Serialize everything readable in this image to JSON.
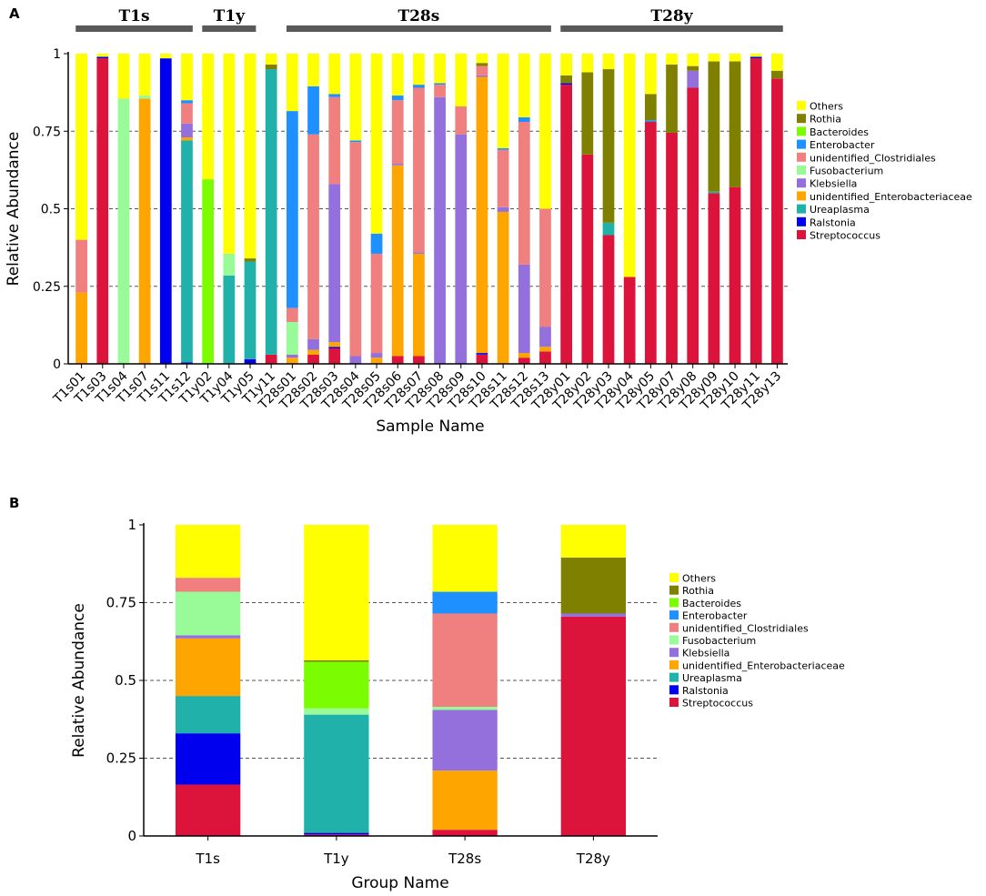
{
  "taxa": [
    "Streptococcus",
    "Ralstonia",
    "Ureaplasma",
    "unidentified_Enterobacteriaceae",
    "Klebsiella",
    "Fusobacterium",
    "unidentified_Clostridiales",
    "Enterobacter",
    "Bacteroides",
    "Rothia",
    "Others"
  ],
  "colors": {
    "Streptococcus": "#DC143C",
    "Ralstonia": "#0000EE",
    "Ureaplasma": "#20B2AA",
    "unidentified_Enterobacteriaceae": "#FFA500",
    "Klebsiella": "#9370DB",
    "Fusobacterium": "#98FB98",
    "unidentified_Clostridiales": "#F08080",
    "Enterobacter": "#1E90FF",
    "Bacteroides": "#7CFC00",
    "Rothia": "#808000",
    "Others": "#FFFF00"
  },
  "chart_data": [
    {
      "panel": "A",
      "type": "bar",
      "stacked": true,
      "xlabel": "Sample Name",
      "ylabel": "Relative Abundance",
      "ylim": [
        0,
        1
      ],
      "yticks": [
        "0",
        "0.25",
        "0.5",
        "0.75",
        "1"
      ],
      "group_headers": [
        {
          "label": "T1s",
          "samples": [
            "T1s01",
            "T1s12"
          ]
        },
        {
          "label": "T1y",
          "samples": [
            "T1y02",
            "T1y05"
          ]
        },
        {
          "label": "T28s",
          "samples": [
            "T28s01",
            "T28s13"
          ]
        },
        {
          "label": "T28y",
          "samples": [
            "T28y01",
            "T28y13"
          ]
        }
      ],
      "legend": [
        "Others",
        "Rothia",
        "Bacteroides",
        "Enterobacter",
        "unidentified_Clostridiales",
        "Fusobacterium",
        "Klebsiella",
        "unidentified_Enterobacteriaceae",
        "Ureaplasma",
        "Ralstonia",
        "Streptococcus"
      ],
      "categories": [
        "T1s01",
        "T1s03",
        "T1s04",
        "T1s07",
        "T1s11",
        "T1s12",
        "T1y02",
        "T1y04",
        "T1y05",
        "T1y11",
        "T28s01",
        "T28s02",
        "T28s03",
        "T28s04",
        "T28s05",
        "T28s06",
        "T28s07",
        "T28s08",
        "T28s09",
        "T28s10",
        "T28s11",
        "T28s12",
        "T28s13",
        "T28y01",
        "T28y02",
        "T28y03",
        "T28y04",
        "T28y05",
        "T28y07",
        "T28y08",
        "T28y09",
        "T28y10",
        "T28y11",
        "T28y13"
      ],
      "series": [
        {
          "name": "Streptococcus",
          "values": [
            0,
            0.985,
            0,
            0,
            0,
            0,
            0,
            0,
            0,
            0.03,
            0,
            0.03,
            0.05,
            0,
            0,
            0.025,
            0.025,
            0,
            0,
            0.03,
            0,
            0.02,
            0.04,
            0.9,
            0.675,
            0.415,
            0.28,
            0.78,
            0.745,
            0.89,
            0.55,
            0.57,
            0.985,
            0.92
          ]
        },
        {
          "name": "Ralstonia",
          "values": [
            0,
            0.005,
            0,
            0,
            0.985,
            0.005,
            0,
            0,
            0.015,
            0,
            0,
            0,
            0.005,
            0,
            0,
            0,
            0,
            0,
            0,
            0.005,
            0,
            0,
            0,
            0.005,
            0,
            0,
            0,
            0,
            0,
            0,
            0,
            0,
            0.005,
            0
          ]
        },
        {
          "name": "Ureaplasma",
          "values": [
            0,
            0,
            0,
            0,
            0,
            0.715,
            0,
            0.285,
            0.315,
            0.92,
            0,
            0,
            0,
            0,
            0,
            0,
            0,
            0,
            0,
            0,
            0,
            0,
            0,
            0,
            0,
            0.04,
            0,
            0,
            0,
            0,
            0.005,
            0,
            0,
            0
          ]
        },
        {
          "name": "unidentified_Enterobacteriaceae",
          "values": [
            0.23,
            0,
            0,
            0.855,
            0,
            0.01,
            0,
            0,
            0,
            0,
            0.02,
            0.015,
            0.015,
            0,
            0.02,
            0.615,
            0.33,
            0,
            0,
            0.89,
            0.49,
            0.015,
            0.015,
            0,
            0,
            0,
            0,
            0,
            0,
            0,
            0,
            0,
            0,
            0
          ]
        },
        {
          "name": "Klebsiella",
          "values": [
            0,
            0,
            0,
            0,
            0,
            0.045,
            0,
            0,
            0,
            0,
            0.01,
            0.035,
            0.51,
            0.025,
            0.015,
            0.005,
            0.005,
            0.86,
            0.74,
            0.005,
            0.015,
            0.285,
            0.065,
            0,
            0,
            0,
            0,
            0,
            0,
            0.055,
            0,
            0,
            0,
            0
          ]
        },
        {
          "name": "Fusobacterium",
          "values": [
            0,
            0,
            0.855,
            0.01,
            0,
            0,
            0,
            0.07,
            0,
            0,
            0.105,
            0,
            0,
            0,
            0,
            0,
            0,
            0,
            0,
            0,
            0,
            0,
            0,
            0,
            0,
            0,
            0,
            0,
            0,
            0,
            0,
            0,
            0,
            0
          ]
        },
        {
          "name": "unidentified_Clostridiales",
          "values": [
            0.17,
            0,
            0,
            0,
            0,
            0.065,
            0,
            0,
            0,
            0,
            0.045,
            0.66,
            0.28,
            0.69,
            0.32,
            0.205,
            0.53,
            0.04,
            0.09,
            0.03,
            0.185,
            0.46,
            0.38,
            0,
            0,
            0,
            0,
            0,
            0,
            0,
            0,
            0,
            0,
            0
          ]
        },
        {
          "name": "Enterobacter",
          "values": [
            0,
            0,
            0,
            0,
            0,
            0.01,
            0,
            0,
            0,
            0,
            0.635,
            0.155,
            0.01,
            0.005,
            0.065,
            0.015,
            0.01,
            0.005,
            0,
            0,
            0.005,
            0.015,
            0,
            0,
            0,
            0,
            0,
            0.005,
            0,
            0,
            0,
            0,
            0,
            0
          ]
        },
        {
          "name": "Bacteroides",
          "values": [
            0,
            0,
            0,
            0,
            0,
            0,
            0.595,
            0,
            0,
            0,
            0,
            0,
            0,
            0,
            0,
            0,
            0,
            0,
            0,
            0,
            0,
            0,
            0,
            0,
            0,
            0,
            0,
            0,
            0,
            0,
            0,
            0,
            0,
            0
          ]
        },
        {
          "name": "Rothia",
          "values": [
            0,
            0,
            0,
            0,
            0,
            0,
            0,
            0,
            0.01,
            0.015,
            0,
            0,
            0,
            0,
            0,
            0,
            0,
            0,
            0,
            0.01,
            0,
            0,
            0,
            0.025,
            0.265,
            0.495,
            0,
            0.085,
            0.22,
            0.015,
            0.42,
            0.405,
            0,
            0.025
          ]
        },
        {
          "name": "Others",
          "values": [
            0.6,
            0.01,
            0.145,
            0.135,
            0.015,
            0.15,
            0.405,
            0.645,
            0.66,
            0.035,
            0.185,
            0.105,
            0.13,
            0.28,
            0.58,
            0.135,
            0.1,
            0.095,
            0.17,
            0.03,
            0.305,
            0.205,
            0.5,
            0.07,
            0.06,
            0.05,
            0.72,
            0.13,
            0.035,
            0.04,
            0.025,
            0.025,
            0.01,
            0.055
          ]
        }
      ]
    },
    {
      "panel": "B",
      "type": "bar",
      "stacked": true,
      "xlabel": "Group Name",
      "ylabel": "Relative Abundance",
      "ylim": [
        0,
        1
      ],
      "yticks": [
        "0",
        "0.25",
        "0.5",
        "0.75",
        "1"
      ],
      "legend": [
        "Others",
        "Rothia",
        "Bacteroides",
        "Enterobacter",
        "unidentified_Clostridiales",
        "Fusobacterium",
        "Klebsiella",
        "unidentified_Enterobacteriaceae",
        "Ureaplasma",
        "Ralstonia",
        "Streptococcus"
      ],
      "categories": [
        "T1s",
        "T1y",
        "T28s",
        "T28y"
      ],
      "series": [
        {
          "name": "Streptococcus",
          "values": [
            0.165,
            0.005,
            0.02,
            0.705
          ]
        },
        {
          "name": "Ralstonia",
          "values": [
            0.165,
            0.005,
            0,
            0
          ]
        },
        {
          "name": "Ureaplasma",
          "values": [
            0.12,
            0.38,
            0,
            0
          ]
        },
        {
          "name": "unidentified_Enterobacteriaceae",
          "values": [
            0.185,
            0,
            0.19,
            0
          ]
        },
        {
          "name": "Klebsiella",
          "values": [
            0.01,
            0,
            0.195,
            0.01
          ]
        },
        {
          "name": "Fusobacterium",
          "values": [
            0.14,
            0.02,
            0.01,
            0
          ]
        },
        {
          "name": "unidentified_Clostridiales",
          "values": [
            0.045,
            0,
            0.3,
            0
          ]
        },
        {
          "name": "Enterobacter",
          "values": [
            0,
            0,
            0.07,
            0
          ]
        },
        {
          "name": "Bacteroides",
          "values": [
            0,
            0.15,
            0,
            0
          ]
        },
        {
          "name": "Rothia",
          "values": [
            0,
            0.005,
            0,
            0.18
          ]
        },
        {
          "name": "Others",
          "values": [
            0.17,
            0.435,
            0.215,
            0.105
          ]
        }
      ]
    }
  ]
}
